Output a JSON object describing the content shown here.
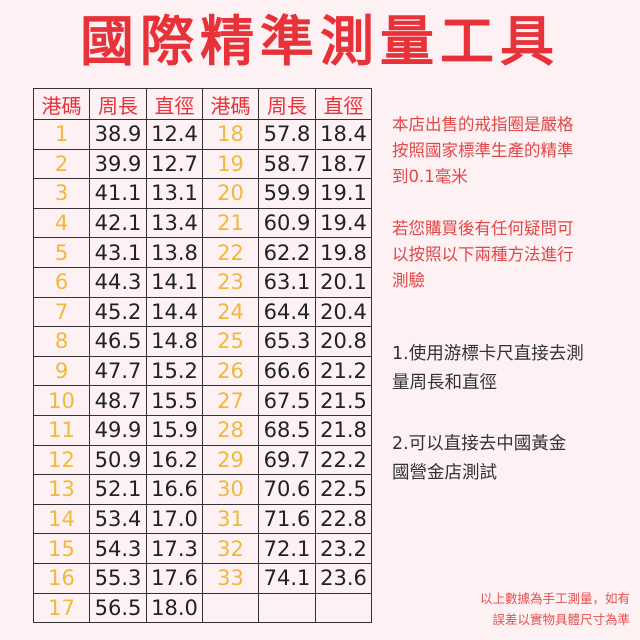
{
  "title": "國際精準測量工具",
  "colors": {
    "title": "#e8323a",
    "code": "#f0b83c",
    "header": "#e8323a",
    "background": "#fdf1f3"
  },
  "table": {
    "headers": [
      "港碼",
      "周長",
      "直徑",
      "港碼",
      "周長",
      "直徑"
    ],
    "rows": [
      [
        "1",
        "38.9",
        "12.4",
        "18",
        "57.8",
        "18.4"
      ],
      [
        "2",
        "39.9",
        "12.7",
        "19",
        "58.7",
        "18.7"
      ],
      [
        "3",
        "41.1",
        "13.1",
        "20",
        "59.9",
        "19.1"
      ],
      [
        "4",
        "42.1",
        "13.4",
        "21",
        "60.9",
        "19.4"
      ],
      [
        "5",
        "43.1",
        "13.8",
        "22",
        "62.2",
        "19.8"
      ],
      [
        "6",
        "44.3",
        "14.1",
        "23",
        "63.1",
        "20.1"
      ],
      [
        "7",
        "45.2",
        "14.4",
        "24",
        "64.4",
        "20.4"
      ],
      [
        "8",
        "46.5",
        "14.8",
        "25",
        "65.3",
        "20.8"
      ],
      [
        "9",
        "47.7",
        "15.2",
        "26",
        "66.6",
        "21.2"
      ],
      [
        "10",
        "48.7",
        "15.5",
        "27",
        "67.5",
        "21.5"
      ],
      [
        "11",
        "49.9",
        "15.9",
        "28",
        "68.5",
        "21.8"
      ],
      [
        "12",
        "50.9",
        "16.2",
        "29",
        "69.7",
        "22.2"
      ],
      [
        "13",
        "52.1",
        "16.6",
        "30",
        "70.6",
        "22.5"
      ],
      [
        "14",
        "53.4",
        "17.0",
        "31",
        "71.6",
        "22.8"
      ],
      [
        "15",
        "54.3",
        "17.3",
        "32",
        "72.1",
        "23.2"
      ],
      [
        "16",
        "55.3",
        "17.6",
        "33",
        "74.1",
        "23.6"
      ],
      [
        "17",
        "56.5",
        "18.0",
        "",
        "",
        ""
      ]
    ]
  },
  "notes": {
    "p1": [
      "本店出售的戒指圈是嚴格",
      "按照國家標準生產的精準",
      "到0.1毫米"
    ],
    "p2": [
      "若您購買後有任何疑問可",
      "以按照以下兩種方法進行",
      "測驗"
    ],
    "m1": [
      "1.使用游標卡尺直接去測",
      "量周長和直徑"
    ],
    "m2": [
      "2.可以直接去中國黃金",
      "國營金店測試"
    ],
    "footer": [
      "以上數據為手工測量，如有",
      "誤差以實物具體尺寸為準"
    ]
  }
}
